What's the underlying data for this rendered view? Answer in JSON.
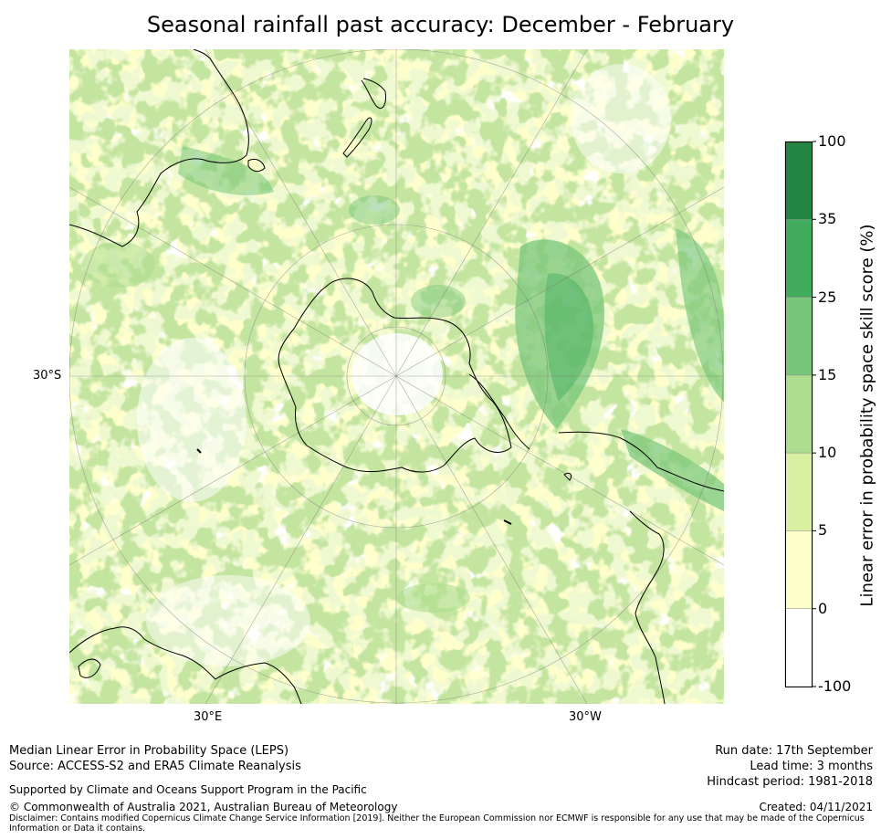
{
  "title": "Seasonal rainfall past accuracy: December - February",
  "map": {
    "projection": "south polar stereographic",
    "grid_labels": {
      "lat_30s": "30°S",
      "lon_30e": "30°E",
      "lon_30w": "30°W"
    }
  },
  "legend": {
    "title": "Linear error in probability space skill score (%)",
    "ticks": [
      "100",
      "35",
      "25",
      "15",
      "10",
      "5",
      "0",
      "-100"
    ],
    "bins": [
      {
        "from": "35",
        "to": "100",
        "color": "#238443"
      },
      {
        "from": "25",
        "to": "35",
        "color": "#41ab5d"
      },
      {
        "from": "15",
        "to": "25",
        "color": "#78c679"
      },
      {
        "from": "10",
        "to": "15",
        "color": "#addd8e"
      },
      {
        "from": "5",
        "to": "10",
        "color": "#d9f0a3"
      },
      {
        "from": "0",
        "to": "5",
        "color": "#ffffcc"
      },
      {
        "from": "-100",
        "to": "0",
        "color": "#ffffff"
      }
    ]
  },
  "footer": {
    "leps": "Median Linear Error in Probability Space (LEPS)",
    "source": "Source: ACCESS-S2 and ERA5 Climate Reanalysis",
    "support": "Supported by Climate and Oceans Support Program in the Pacific",
    "copyright": "© Commonwealth of Australia 2021, Australian Bureau of Meteorology",
    "disclaimer": "Disclaimer: Contains modified Copernicus Climate Change Service Information [2019]. Neither the European Commission nor ECMWF is responsible for any use that may be made of the Copernicus Information or Data it contains.",
    "run_date": "Run date: 17th September",
    "lead_time": "Lead time: 3 months",
    "hindcast": "Hindcast period: 1981-2018",
    "created": "Created: 04/11/2021"
  }
}
